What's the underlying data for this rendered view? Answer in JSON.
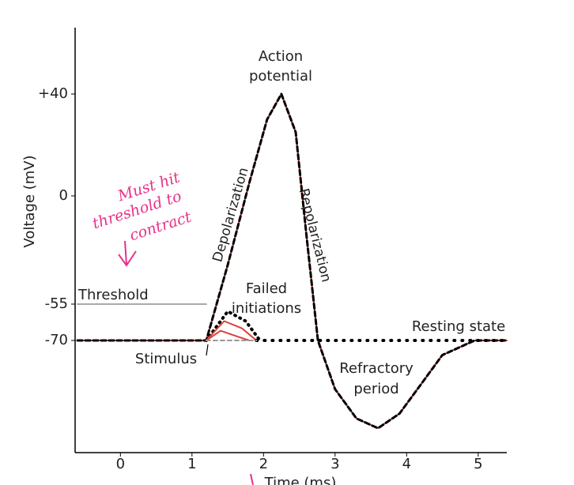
{
  "chart_data": {
    "type": "line",
    "y_label": "Voltage (mV)",
    "x_label": "Time (ms)",
    "xlim": [
      -0.6,
      5.4
    ],
    "xticks": [
      0,
      1,
      2,
      3,
      4,
      5
    ],
    "ylim": [
      -116,
      66
    ],
    "yticks": [
      -70,
      -55,
      0,
      {
        "value": 40,
        "label": "+40"
      }
    ],
    "series": [
      {
        "color": "#d9413a",
        "dash": "none",
        "x": [
          -0.6,
          1.2,
          1.5,
          1.8,
          2.05,
          2.25,
          2.45,
          2.6,
          2.76,
          3.0,
          3.3,
          3.6,
          3.9,
          4.2,
          4.5,
          4.95,
          5.4
        ],
        "values": [
          -70,
          -70,
          -35,
          5,
          30,
          40,
          25,
          -20,
          -70,
          -90,
          -102,
          -106,
          -100,
          -88,
          -76,
          -70,
          -70
        ]
      },
      {
        "color": "#000000",
        "dash": "6 4",
        "x": [
          -0.6,
          1.2,
          1.5,
          1.8,
          2.05,
          2.25,
          2.45,
          2.6,
          2.76,
          3.0,
          3.3,
          3.6,
          3.9,
          4.2,
          4.5,
          4.95,
          5.4
        ],
        "values": [
          -70,
          -70,
          -35,
          5,
          30,
          40,
          25,
          -20,
          -70,
          -90,
          -102,
          -106,
          -100,
          -88,
          -76,
          -70,
          -70
        ]
      },
      {
        "color": "#000000",
        "dash": "1 6",
        "x": [
          1.2,
          1.5,
          1.75,
          1.95
        ],
        "values": [
          -70,
          -58,
          -62,
          -70
        ]
      },
      {
        "color": "#d9413a",
        "dash": "none",
        "x": [
          1.2,
          1.45,
          1.7,
          1.9
        ],
        "values": [
          -70,
          -62,
          -65,
          -70
        ]
      },
      {
        "color": "#d9413a",
        "dash": "none",
        "x": [
          1.2,
          1.4,
          1.6,
          1.8
        ],
        "values": [
          -70,
          -66,
          -68,
          -70
        ]
      },
      {
        "color": "#000000",
        "dash": "1 9",
        "x": [
          1.9,
          5.4
        ],
        "values": [
          -70,
          -70
        ]
      },
      {
        "color": "#aaaaaa",
        "dash": "none",
        "x": [
          -0.6,
          1.2
        ],
        "values": [
          -55,
          -55
        ]
      },
      {
        "color": "#999999",
        "dash": "5 4",
        "x": [
          1.2,
          1.9
        ],
        "values": [
          -70,
          -70
        ]
      }
    ],
    "annotations": [
      "Action",
      "potential",
      "Depolarization",
      "Repolarization",
      "Failed",
      "initiations",
      "Threshold",
      "Resting state",
      "Stimulus",
      "Refractory",
      "period"
    ],
    "handwriting": [
      "Must hit",
      "threshold to",
      "contract"
    ]
  }
}
